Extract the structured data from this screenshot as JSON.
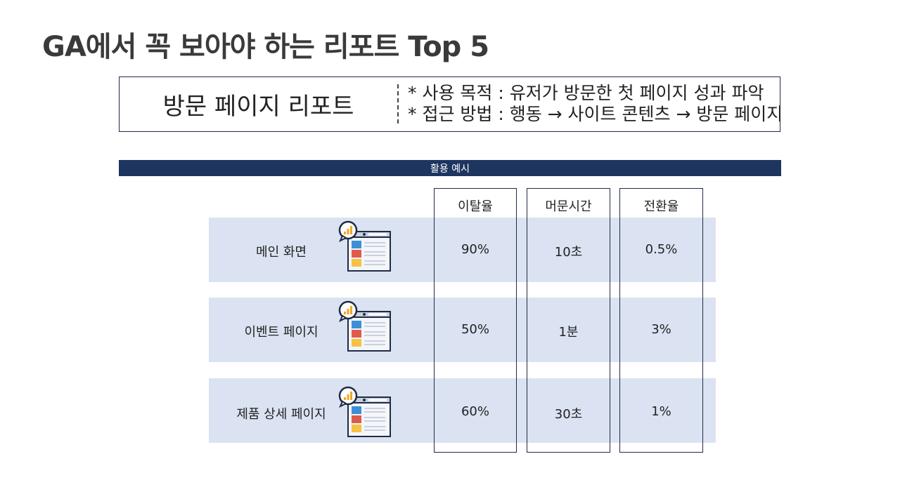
{
  "title": "GA에서 꼭 보아야 하는 리포트 Top 5",
  "report": {
    "name": "방문 페이지 리포트",
    "notes": [
      "* 사용 목적 : 유저가 방문한 첫 페이지 성과 파악",
      "* 접근 방법 : 행동 → 사이트 콘텐츠 → 방문 페이지"
    ]
  },
  "section_label": "활용 예시",
  "table": {
    "headers": [
      "이탈율",
      "머문시간",
      "전환율"
    ],
    "rows": [
      {
        "label": "메인 화면",
        "icon": "analytics-page-icon",
        "values": [
          "90%",
          "10초",
          "0.5%"
        ]
      },
      {
        "label": "이벤트 페이지",
        "icon": "analytics-page-icon",
        "values": [
          "50%",
          "1분",
          "3%"
        ]
      },
      {
        "label": "제품 상세 페이지",
        "icon": "analytics-page-icon",
        "values": [
          "60%",
          "30초",
          "1%"
        ]
      }
    ]
  },
  "colors": {
    "navy": "#1e3560",
    "row_bg": "#dbe3f2",
    "icon_blue": "#3d8fd8",
    "icon_red": "#e05a4a",
    "icon_yellow": "#f5c243",
    "icon_badge": "#f5a623"
  }
}
